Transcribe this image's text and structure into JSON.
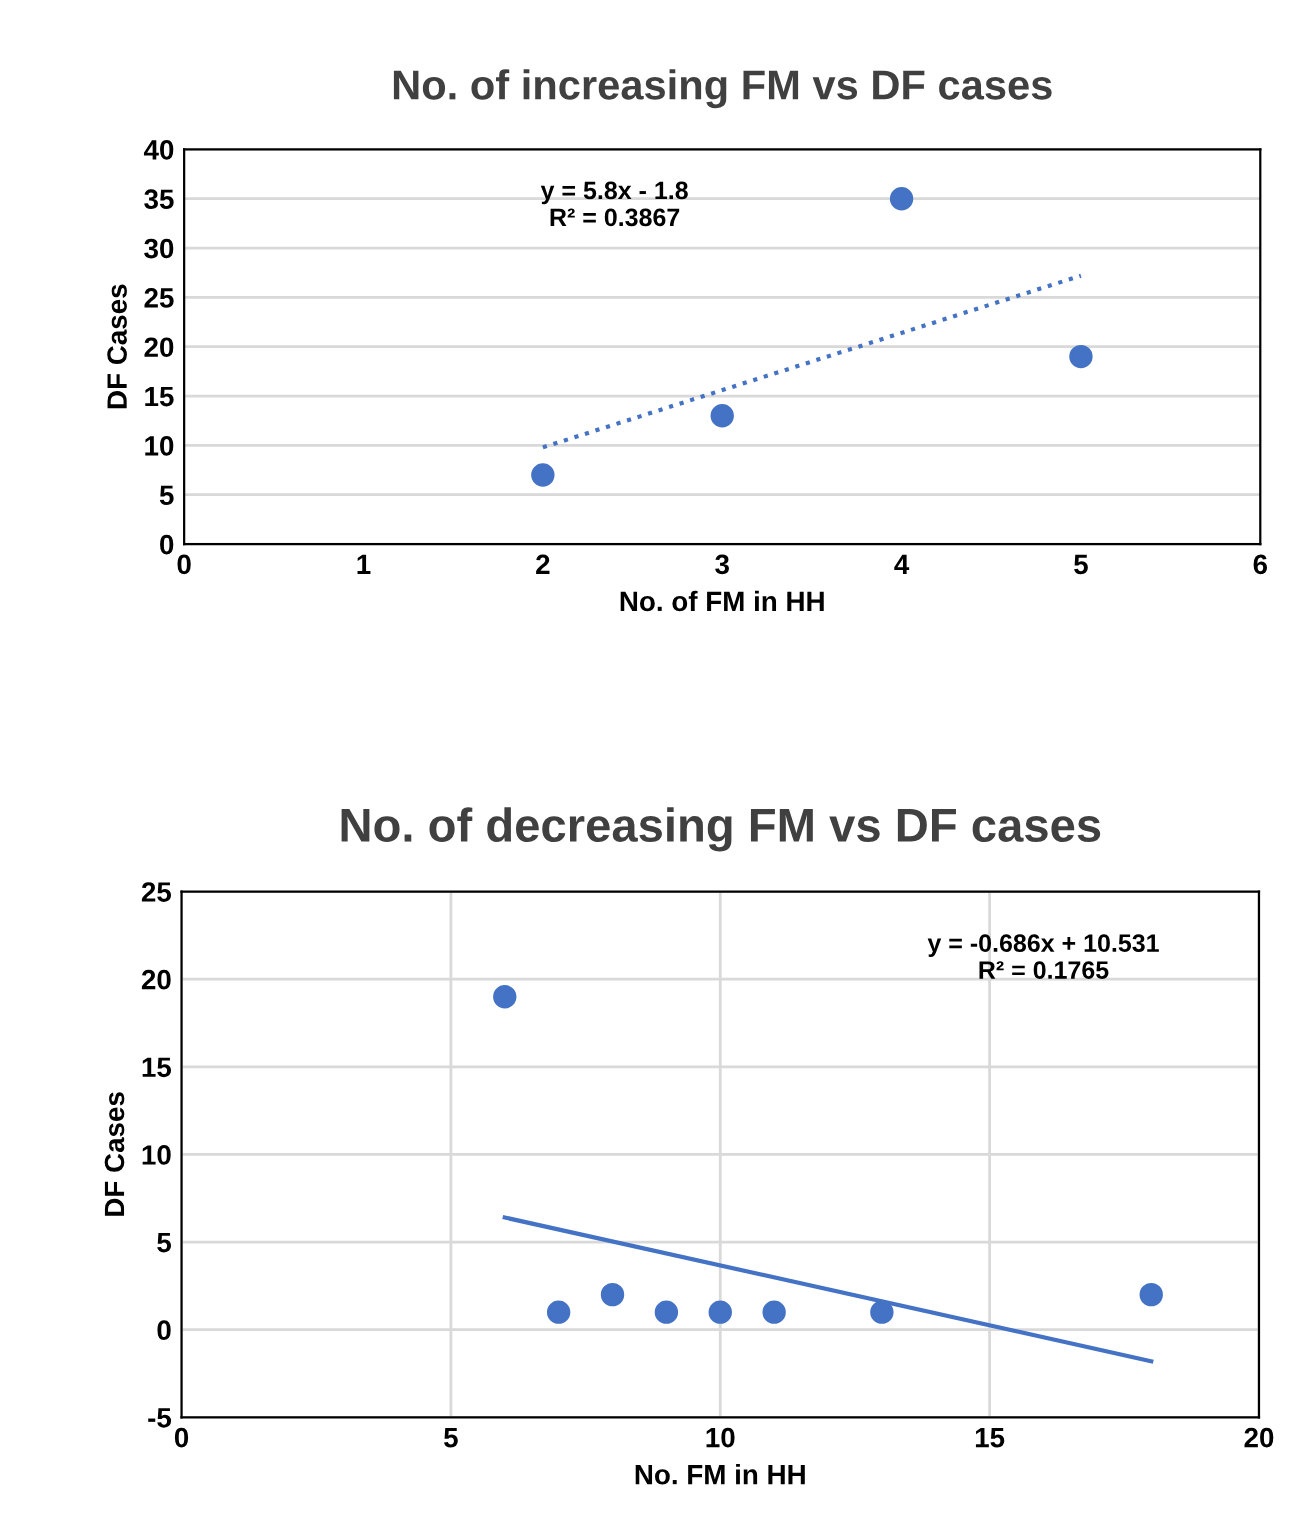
{
  "chart_data": [
    {
      "type": "scatter",
      "title": "No. of increasing FM vs DF cases",
      "xlabel": "No. of FM in HH",
      "ylabel": "DF Cases",
      "series": [
        {
          "color": "#4472c4",
          "x": [
            2,
            3,
            4,
            5
          ],
          "values": [
            7,
            13,
            35,
            19
          ],
          "marker": "circle"
        },
        {
          "type": "line",
          "color": "#4472c4",
          "x": [
            2,
            5
          ],
          "values": [
            9.8,
            27.2
          ],
          "line_style": "dotted",
          "marker": "none"
        }
      ],
      "xlim": [
        0,
        6
      ],
      "xticks": [
        0,
        1,
        2,
        3,
        4,
        5,
        6
      ],
      "ylim": [
        0,
        40
      ],
      "yticks": [
        0,
        5,
        10,
        15,
        20,
        25,
        30,
        35,
        40
      ],
      "grid": "y",
      "legend": false,
      "annotations": [
        "y = 5.8x - 1.8\nR² = 0.3867"
      ]
    },
    {
      "type": "scatter",
      "title": "No. of decreasing FM vs DF cases",
      "xlabel": "No. FM in HH",
      "ylabel": "DF Cases",
      "series": [
        {
          "color": "#4472c4",
          "x": [
            6,
            7,
            8,
            9,
            10,
            11,
            13,
            18
          ],
          "values": [
            19,
            1,
            2,
            1,
            1,
            1,
            1,
            2
          ],
          "marker": "circle"
        },
        {
          "type": "line",
          "color": "#4472c4",
          "x": [
            6,
            18
          ],
          "values": [
            6.4,
            -1.8
          ],
          "line_style": "solid",
          "marker": "none"
        }
      ],
      "xlim": [
        0,
        20
      ],
      "xticks": [
        0,
        5,
        10,
        15,
        20
      ],
      "ylim": [
        -5,
        25
      ],
      "yticks": [
        -5,
        0,
        5,
        10,
        15,
        20,
        25
      ],
      "grid": true,
      "legend": false,
      "annotations": [
        "y = -0.686x + 10.531\nR² = 0.1765"
      ]
    }
  ]
}
